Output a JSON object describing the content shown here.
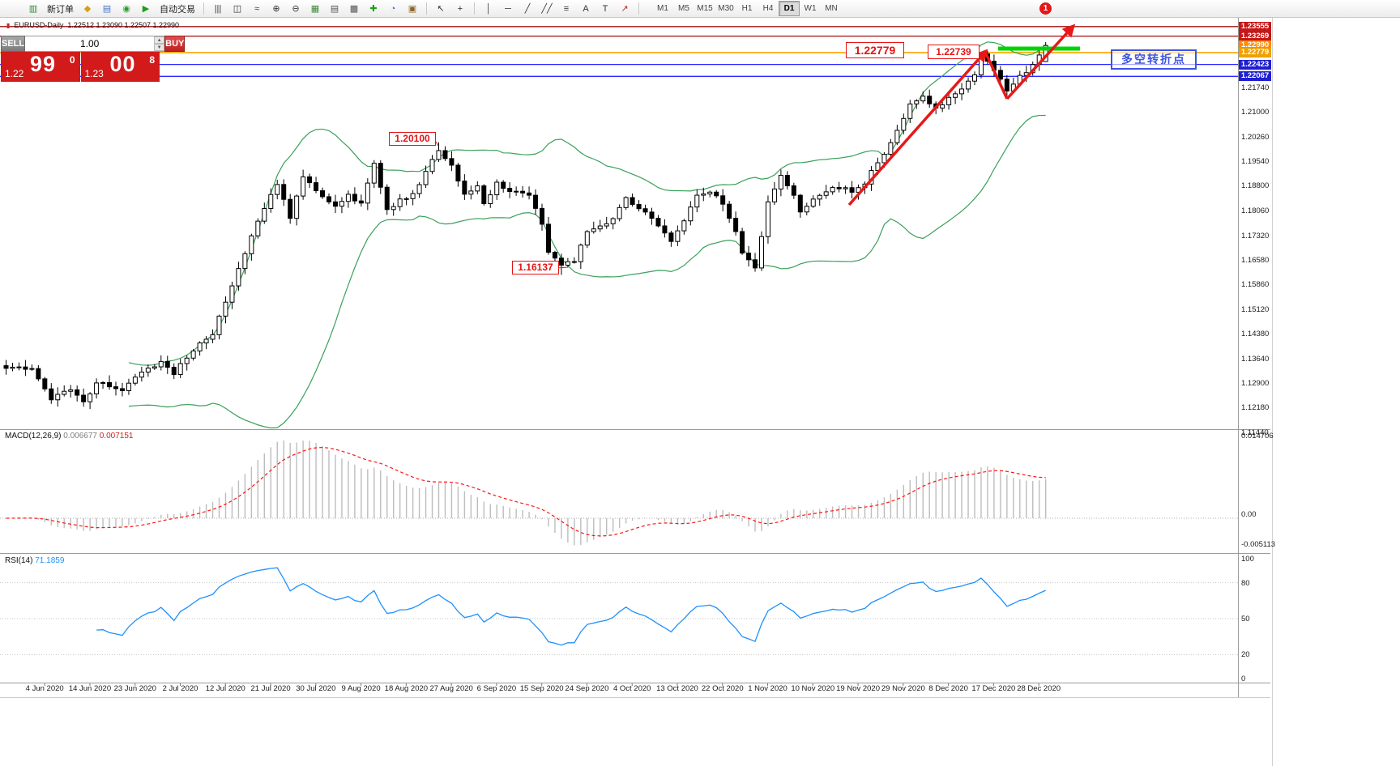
{
  "colors": {
    "bb_green": "#3aa05a",
    "candle_outline": "#000000",
    "macd_hist": "#bdbdbd",
    "macd_signal": "#ff1414",
    "rsi_line": "#1e90ff",
    "arrow_red": "#e81818",
    "support_green": "#00d400",
    "trade_red": "#d21a1a"
  },
  "toolbar": {
    "items": [
      {
        "name": "new-order-icon",
        "type": "icon",
        "glyph": "▥",
        "color": "#2e8b2e"
      },
      {
        "name": "new-order-button",
        "type": "label",
        "label": "新订单"
      },
      {
        "name": "stamp-icon",
        "type": "icon",
        "glyph": "◆",
        "color": "#d4a017"
      },
      {
        "name": "chat-icon",
        "type": "icon",
        "glyph": "▤",
        "color": "#4477cc"
      },
      {
        "name": "support-icon",
        "type": "icon",
        "glyph": "◉",
        "color": "#2a9d2a"
      },
      {
        "name": "autotrade-play-icon",
        "type": "icon",
        "glyph": "▶",
        "color": "#18a018"
      },
      {
        "name": "autotrade-button",
        "type": "label",
        "label": "自动交易"
      },
      {
        "name": "toolbar-separator-1",
        "type": "sep"
      },
      {
        "name": "bar-chart-icon",
        "type": "icon",
        "glyph": "|||",
        "color": "#333333"
      },
      {
        "name": "candle-chart-icon",
        "type": "icon",
        "glyph": "◫",
        "color": "#333333"
      },
      {
        "name": "line-chart-icon",
        "type": "icon",
        "glyph": "≈",
        "color": "#333333"
      },
      {
        "name": "zoom-in-icon",
        "type": "icon",
        "glyph": "⊕",
        "color": "#333333"
      },
      {
        "name": "zoom-out-icon",
        "type": "icon",
        "glyph": "⊖",
        "color": "#333333"
      },
      {
        "name": "tile-windows-icon",
        "type": "icon",
        "glyph": "▦",
        "color": "#3a8a3a"
      },
      {
        "name": "indicators-list-icon",
        "type": "icon",
        "glyph": "▤",
        "color": "#555555"
      },
      {
        "name": "arrange-windows-icon",
        "type": "icon",
        "glyph": "▩",
        "color": "#555555"
      },
      {
        "name": "add-indicator-icon",
        "type": "icon",
        "glyph": "✚",
        "color": "#18a018"
      },
      {
        "name": "period-icon",
        "type": "icon",
        "glyph": "◔",
        "color": "#3366cc"
      },
      {
        "name": "template-icon",
        "type": "icon",
        "glyph": "▣",
        "color": "#886622"
      },
      {
        "name": "toolbar-separator-2",
        "type": "sep"
      },
      {
        "name": "cursor-icon",
        "type": "icon",
        "glyph": "↖",
        "color": "#333333"
      },
      {
        "name": "crosshair-icon",
        "type": "icon",
        "glyph": "+",
        "color": "#333333"
      },
      {
        "name": "toolbar-separator-3",
        "type": "sep"
      },
      {
        "name": "vertical-line-icon",
        "type": "icon",
        "glyph": "│",
        "color": "#333333"
      },
      {
        "name": "horizontal-line-icon",
        "type": "icon",
        "glyph": "─",
        "color": "#333333"
      },
      {
        "name": "trendline-icon",
        "type": "icon",
        "glyph": "╱",
        "color": "#333333"
      },
      {
        "name": "channel-icon",
        "type": "icon",
        "glyph": "╱╱",
        "color": "#333333"
      },
      {
        "name": "fibonacci-icon",
        "type": "icon",
        "glyph": "≡",
        "color": "#333333"
      },
      {
        "name": "text-icon",
        "type": "icon",
        "glyph": "A",
        "color": "#333333"
      },
      {
        "name": "label-icon",
        "type": "icon",
        "glyph": "T",
        "color": "#333333"
      },
      {
        "name": "arrows-icon",
        "type": "icon",
        "glyph": "↗",
        "color": "#b03030"
      },
      {
        "name": "toolbar-separator-4",
        "type": "sep"
      }
    ],
    "timeframes": [
      "M1",
      "M5",
      "M15",
      "M30",
      "H1",
      "H4",
      "D1",
      "W1",
      "MN"
    ],
    "active_timeframe": "D1",
    "notification_badge": "1"
  },
  "chart_header": {
    "symbol_title": "EURUSD-Daily",
    "ohlc_values": "1.22512 1.23090 1.22507 1.22990"
  },
  "trade_panel": {
    "sell_label": "SELL",
    "buy_label": "BUY",
    "volume": "1.00",
    "sell_price": {
      "big": "1.22",
      "pips": "99",
      "sup": "0"
    },
    "buy_price": {
      "big": "1.23",
      "pips": "00",
      "sup": "8"
    }
  },
  "annotations": {
    "high_label": "1.20100",
    "low_label": "1.16137",
    "resistance_label": "1.22779",
    "swing_label": "1.22739",
    "turning_point_label": "多空转折点"
  },
  "price_axis": {
    "tags": [
      {
        "label": "1.23555",
        "bg": "#c41717",
        "line": "#a01010",
        "lw": 1.3
      },
      {
        "label": "1.23269",
        "bg": "#c41717",
        "line": "#a01010",
        "lw": 1.3
      },
      {
        "label": "1.22990",
        "bg": "#ff8a00",
        "line": null,
        "lw": 0
      },
      {
        "label": "1.22779",
        "bg": "#f0a000",
        "line": "#ffa500",
        "lw": 1.6
      },
      {
        "label": "1.22423",
        "bg": "#1f1fd0",
        "line": "#2a2aff",
        "lw": 1.3
      },
      {
        "label": "1.22067",
        "bg": "#1f1fd0",
        "line": "#2a2aff",
        "lw": 1.3
      }
    ],
    "gridline_labels": [
      "1.21740",
      "1.21000",
      "1.20260",
      "1.19540",
      "1.18800",
      "1.18060",
      "1.17320",
      "1.16580",
      "1.15860",
      "1.15120",
      "1.14380",
      "1.13640",
      "1.12900",
      "1.12180",
      "1.11440"
    ]
  },
  "macd_panel": {
    "name": "MACD(12,26,9)",
    "main_value": "0.006677",
    "signal_value": "0.007151",
    "scale_labels": [
      "0.014706",
      "0.00",
      "-0.005113"
    ]
  },
  "rsi_panel": {
    "name": "RSI(14)",
    "value": "71.1859",
    "scale_labels": [
      "100",
      "80",
      "50",
      "20",
      "0"
    ],
    "levels": [
      80,
      50,
      20
    ]
  },
  "time_axis": {
    "dates": [
      "4 Jun 2020",
      "14 Jun 2020",
      "23 Jun 2020",
      "2 Jul 2020",
      "12 Jul 2020",
      "21 Jul 2020",
      "30 Jul 2020",
      "9 Aug 2020",
      "18 Aug 2020",
      "27 Aug 2020",
      "6 Sep 2020",
      "15 Sep 2020",
      "24 Sep 2020",
      "4 Oct 2020",
      "13 Oct 2020",
      "22 Oct 2020",
      "1 Nov 2020",
      "10 Nov 2020",
      "19 Nov 2020",
      "29 Nov 2020",
      "8 Dec 2020",
      "17 Dec 2020",
      "28 Dec 2020"
    ]
  },
  "chart_data": {
    "type": "candlestick",
    "symbol": "EURUSD",
    "timeframe": "Daily",
    "visible_price_range": [
      1.1148,
      1.2372
    ],
    "candle_count": 162,
    "close_waypoints": [
      [
        0,
        1.134
      ],
      [
        4,
        1.1335
      ],
      [
        7,
        1.1245
      ],
      [
        10,
        1.1275
      ],
      [
        12,
        1.123
      ],
      [
        14,
        1.1293
      ],
      [
        18,
        1.1272
      ],
      [
        20,
        1.1313
      ],
      [
        24,
        1.1355
      ],
      [
        26,
        1.132
      ],
      [
        29,
        1.139
      ],
      [
        32,
        1.144
      ],
      [
        35,
        1.1585
      ],
      [
        38,
        1.173
      ],
      [
        41,
        1.185
      ],
      [
        42,
        1.1888
      ],
      [
        44,
        1.178
      ],
      [
        46,
        1.1912
      ],
      [
        48,
        1.1865
      ],
      [
        51,
        1.1815
      ],
      [
        53,
        1.185
      ],
      [
        55,
        1.1828
      ],
      [
        57,
        1.1948
      ],
      [
        59,
        1.1805
      ],
      [
        61,
        1.184
      ],
      [
        63,
        1.1852
      ],
      [
        65,
        1.1924
      ],
      [
        67,
        1.1985
      ],
      [
        69,
        1.1937
      ],
      [
        71,
        1.1852
      ],
      [
        73,
        1.1876
      ],
      [
        74,
        1.1828
      ],
      [
        76,
        1.1888
      ],
      [
        78,
        1.1864
      ],
      [
        81,
        1.1856
      ],
      [
        83,
        1.1768
      ],
      [
        84,
        1.1683
      ],
      [
        86,
        1.1646
      ],
      [
        88,
        1.1658
      ],
      [
        90,
        1.1742
      ],
      [
        92,
        1.1755
      ],
      [
        94,
        1.178
      ],
      [
        96,
        1.184
      ],
      [
        98,
        1.1815
      ],
      [
        100,
        1.178
      ],
      [
        101,
        1.1755
      ],
      [
        103,
        1.1718
      ],
      [
        105,
        1.178
      ],
      [
        107,
        1.185
      ],
      [
        109,
        1.1865
      ],
      [
        111,
        1.1828
      ],
      [
        113,
        1.1742
      ],
      [
        114,
        1.1683
      ],
      [
        116,
        1.1635
      ],
      [
        118,
        1.1828
      ],
      [
        120,
        1.1912
      ],
      [
        122,
        1.1852
      ],
      [
        123,
        1.1805
      ],
      [
        125,
        1.184
      ],
      [
        127,
        1.1864
      ],
      [
        129,
        1.1876
      ],
      [
        131,
        1.1864
      ],
      [
        133,
        1.1888
      ],
      [
        134,
        1.1924
      ],
      [
        136,
        1.1974
      ],
      [
        138,
        1.2046
      ],
      [
        140,
        1.212
      ],
      [
        142,
        1.2143
      ],
      [
        144,
        1.2108
      ],
      [
        146,
        1.2143
      ],
      [
        148,
        1.2168
      ],
      [
        150,
        1.2216
      ],
      [
        151,
        1.2274
      ],
      [
        153,
        1.2229
      ],
      [
        155,
        1.2168
      ],
      [
        157,
        1.2205
      ],
      [
        159,
        1.224
      ],
      [
        161,
        1.2299
      ]
    ],
    "forced_points": {
      "high": [
        [
          67,
          1.201
        ],
        [
          151,
          1.22739
        ]
      ],
      "low": [
        [
          86,
          1.16137
        ]
      ],
      "last_candle_ohlc": [
        1.22512,
        1.2309,
        1.22507,
        1.2299
      ]
    },
    "indicators": [
      {
        "name": "Bollinger Bands",
        "period": 20,
        "deviation": 2
      },
      {
        "name": "MACD",
        "params": [
          12,
          26,
          9
        ],
        "current_values": [
          0.006677,
          0.007151
        ]
      },
      {
        "name": "RSI",
        "period": 14,
        "current_value": 71.1859
      }
    ],
    "key_levels": {
      "resistance_1": 1.23555,
      "resistance_2": 1.23269,
      "orange_level": 1.22779,
      "support_1": 1.22423,
      "support_2": 1.22067,
      "current_bid": 1.2299,
      "current_ask": 1.23008,
      "swing_high": 1.201,
      "swing_low": 1.16137,
      "recent_high": 1.22739
    }
  }
}
